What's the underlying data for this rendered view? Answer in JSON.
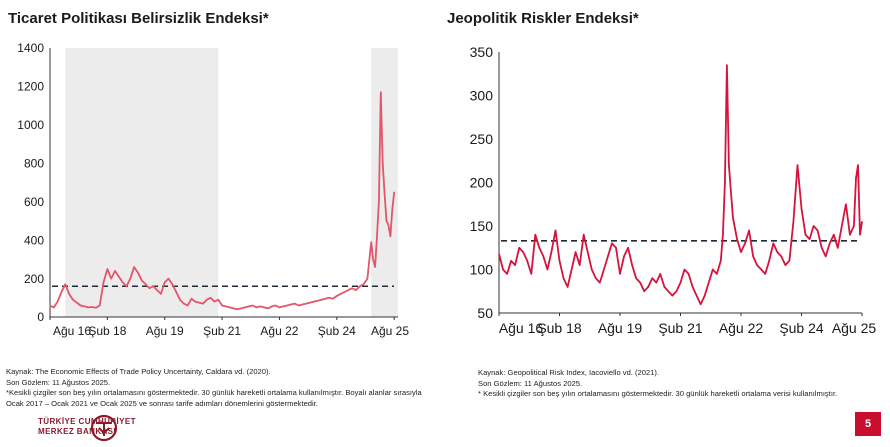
{
  "chart_data": [
    {
      "type": "line",
      "title": "Ticaret Politikası Belirsizlik Endeksi*",
      "xlabel": "",
      "ylabel": "",
      "ylim": [
        0,
        1400
      ],
      "yticks": [
        0,
        200,
        400,
        600,
        800,
        1000,
        1200,
        1400
      ],
      "xlim": [
        2016.6,
        2025.7
      ],
      "xticks": [
        {
          "label": "Ağu 16",
          "x": 2016.6
        },
        {
          "label": "Şub 18",
          "x": 2018.1
        },
        {
          "label": "Ağu 19",
          "x": 2019.6
        },
        {
          "label": "Şub 21",
          "x": 2021.1
        },
        {
          "label": "Ağu 22",
          "x": 2022.6
        },
        {
          "label": "Şub 24",
          "x": 2024.1
        },
        {
          "label": "Ağu 25",
          "x": 2025.6
        }
      ],
      "shaded_periods": [
        {
          "start": 2017.0,
          "end": 2021.0
        },
        {
          "start": 2025.0,
          "end": 2025.7
        }
      ],
      "series": [
        {
          "name": "Ticaret Politikası Belirsizlik Endeksi",
          "color": "#e2566b",
          "x": [
            2016.6,
            2016.7,
            2016.8,
            2016.9,
            2017.0,
            2017.1,
            2017.2,
            2017.3,
            2017.4,
            2017.5,
            2017.6,
            2017.7,
            2017.8,
            2017.9,
            2018.0,
            2018.1,
            2018.2,
            2018.3,
            2018.4,
            2018.5,
            2018.6,
            2018.7,
            2018.8,
            2018.9,
            2019.0,
            2019.1,
            2019.2,
            2019.3,
            2019.4,
            2019.5,
            2019.6,
            2019.7,
            2019.8,
            2019.9,
            2020.0,
            2020.1,
            2020.2,
            2020.3,
            2020.4,
            2020.5,
            2020.6,
            2020.7,
            2020.8,
            2020.9,
            2021.0,
            2021.1,
            2021.2,
            2021.3,
            2021.4,
            2021.5,
            2021.6,
            2021.7,
            2021.8,
            2021.9,
            2022.0,
            2022.1,
            2022.2,
            2022.3,
            2022.4,
            2022.5,
            2022.6,
            2022.7,
            2022.8,
            2022.9,
            2023.0,
            2023.1,
            2023.2,
            2023.3,
            2023.4,
            2023.5,
            2023.6,
            2023.7,
            2023.8,
            2023.9,
            2024.0,
            2024.1,
            2024.2,
            2024.3,
            2024.4,
            2024.5,
            2024.6,
            2024.7,
            2024.8,
            2024.9,
            2025.0,
            2025.05,
            2025.1,
            2025.15,
            2025.2,
            2025.25,
            2025.3,
            2025.35,
            2025.4,
            2025.45,
            2025.5,
            2025.55,
            2025.6
          ],
          "values": [
            60,
            50,
            80,
            130,
            170,
            120,
            90,
            75,
            60,
            55,
            50,
            52,
            48,
            60,
            180,
            250,
            200,
            240,
            210,
            180,
            160,
            200,
            260,
            230,
            190,
            170,
            150,
            160,
            140,
            120,
            180,
            200,
            170,
            130,
            90,
            70,
            60,
            95,
            80,
            75,
            70,
            90,
            100,
            80,
            90,
            60,
            55,
            50,
            45,
            40,
            45,
            50,
            55,
            60,
            50,
            55,
            50,
            45,
            55,
            60,
            50,
            55,
            60,
            65,
            70,
            60,
            65,
            70,
            75,
            80,
            85,
            90,
            95,
            100,
            95,
            110,
            120,
            130,
            140,
            150,
            140,
            160,
            170,
            200,
            390,
            300,
            260,
            420,
            600,
            1170,
            800,
            640,
            500,
            480,
            420,
            560,
            650
          ]
        }
      ],
      "reference_line": {
        "value": 160,
        "style": "dashed",
        "color": "#1f2a37"
      }
    },
    {
      "type": "line",
      "title": "Jeopolitik Riskler Endeksi*",
      "xlabel": "",
      "ylabel": "",
      "ylim": [
        50,
        350
      ],
      "yticks": [
        50,
        100,
        150,
        200,
        250,
        300,
        350
      ],
      "xlim": [
        2016.6,
        2025.6
      ],
      "xticks": [
        {
          "label": "Ağu 16",
          "x": 2016.6
        },
        {
          "label": "Şub 18",
          "x": 2018.1
        },
        {
          "label": "Ağu 19",
          "x": 2019.6
        },
        {
          "label": "Şub 21",
          "x": 2021.1
        },
        {
          "label": "Ağu 22",
          "x": 2022.6
        },
        {
          "label": "Şub 24",
          "x": 2024.1
        },
        {
          "label": "Ağu 25",
          "x": 2025.6
        }
      ],
      "series": [
        {
          "name": "Jeopolitik Riskler Endeksi",
          "color": "#d5133c",
          "x": [
            2016.6,
            2016.7,
            2016.8,
            2016.9,
            2017.0,
            2017.1,
            2017.2,
            2017.3,
            2017.4,
            2017.5,
            2017.6,
            2017.7,
            2017.8,
            2017.9,
            2018.0,
            2018.1,
            2018.2,
            2018.3,
            2018.4,
            2018.5,
            2018.6,
            2018.7,
            2018.8,
            2018.9,
            2019.0,
            2019.1,
            2019.2,
            2019.3,
            2019.4,
            2019.5,
            2019.6,
            2019.7,
            2019.8,
            2019.9,
            2020.0,
            2020.1,
            2020.2,
            2020.3,
            2020.4,
            2020.5,
            2020.6,
            2020.7,
            2020.8,
            2020.9,
            2021.0,
            2021.1,
            2021.2,
            2021.3,
            2021.4,
            2021.5,
            2021.6,
            2021.7,
            2021.8,
            2021.9,
            2022.0,
            2022.1,
            2022.15,
            2022.2,
            2022.25,
            2022.3,
            2022.4,
            2022.5,
            2022.6,
            2022.7,
            2022.8,
            2022.9,
            2023.0,
            2023.1,
            2023.2,
            2023.3,
            2023.4,
            2023.5,
            2023.6,
            2023.7,
            2023.8,
            2023.9,
            2024.0,
            2024.1,
            2024.2,
            2024.3,
            2024.4,
            2024.5,
            2024.6,
            2024.7,
            2024.8,
            2024.9,
            2025.0,
            2025.1,
            2025.2,
            2025.3,
            2025.4,
            2025.45,
            2025.5,
            2025.55,
            2025.6
          ],
          "values": [
            118,
            100,
            95,
            110,
            105,
            125,
            120,
            110,
            95,
            140,
            125,
            115,
            100,
            120,
            145,
            110,
            90,
            80,
            100,
            120,
            105,
            140,
            120,
            100,
            90,
            85,
            100,
            115,
            130,
            125,
            95,
            115,
            125,
            105,
            90,
            85,
            75,
            80,
            90,
            85,
            95,
            80,
            75,
            70,
            75,
            85,
            100,
            95,
            80,
            70,
            60,
            70,
            85,
            100,
            95,
            110,
            140,
            200,
            335,
            220,
            160,
            135,
            120,
            130,
            145,
            115,
            105,
            100,
            95,
            110,
            130,
            120,
            115,
            105,
            110,
            155,
            220,
            170,
            140,
            135,
            150,
            145,
            125,
            115,
            130,
            140,
            125,
            150,
            175,
            140,
            150,
            205,
            220,
            140,
            155
          ]
        }
      ],
      "reference_line": {
        "value": 133,
        "style": "dashed",
        "color": "#1f2a37"
      }
    }
  ],
  "notes": {
    "left": [
      "Kaynak: The Economic Effects of Trade Policy Uncertainty, Caldara vd. (2020).",
      "Son Gözlem: 11 Ağustos 2025.",
      "*Kesikli çizgiler son beş yılın ortalamasını göstermektedir. 30 günlük hareketli ortalama kullanılmıştır. Boyalı alanlar sırasıyla Ocak 2017 – Ocak 2021 ve Ocak 2025 ve sonrası tarife adımları dönemlerini göstermektedir."
    ],
    "right": [
      "Kaynak: Geopolitical Risk Index, Iacoviello vd. (2021).",
      " Son Gözlem: 11 Ağustos 2025.",
      "* Kesikli çizgiler son beş yılın ortalamasını göstermektedir. 30 günlük hareketli ortalama verisi kullanılmıştır."
    ]
  },
  "footer": {
    "logo_line1": "TÜRKİYE CUMHURİYET",
    "logo_line2": "MERKEZ BANKASI",
    "page_number": "5",
    "brand_color": "#c8102e"
  }
}
